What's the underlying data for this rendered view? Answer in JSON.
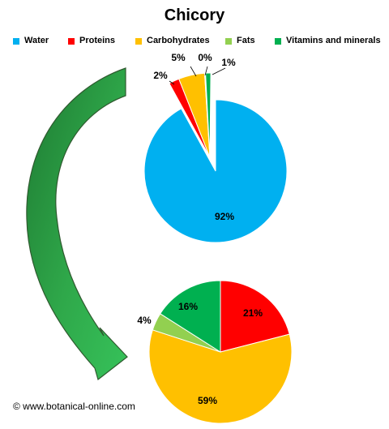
{
  "title": "Chicory",
  "credit": "© www.botanical-online.com",
  "legend": [
    {
      "label": "Water",
      "color": "#00b0f0"
    },
    {
      "label": "Proteins",
      "color": "#ff0000"
    },
    {
      "label": "Carbohydrates",
      "color": "#ffc000"
    },
    {
      "label": "Fats",
      "color": "#92d050"
    },
    {
      "label": "Vitamins and minerals",
      "color": "#00b050"
    }
  ],
  "chart_data": [
    {
      "type": "pie",
      "title": "Chicory",
      "categories": [
        "Water",
        "Proteins",
        "Carbohydrates",
        "Fats",
        "Vitamins and minerals"
      ],
      "values": [
        92,
        2,
        5,
        0,
        1
      ],
      "labels": [
        "92%",
        "2%",
        "5%",
        "0%",
        "1%"
      ],
      "colors": [
        "#00b0f0",
        "#ff0000",
        "#ffc000",
        "#92d050",
        "#00b050"
      ],
      "legend": "top",
      "exploded": [
        "Proteins",
        "Carbohydrates",
        "Fats",
        "Vitamins and minerals"
      ]
    },
    {
      "type": "pie",
      "categories": [
        "Proteins",
        "Carbohydrates",
        "Fats",
        "Vitamins and minerals"
      ],
      "values": [
        21,
        59,
        4,
        16
      ],
      "labels": [
        "21%",
        "59%",
        "4%",
        "16%"
      ],
      "colors": [
        "#ff0000",
        "#ffc000",
        "#92d050",
        "#00b050"
      ]
    }
  ]
}
